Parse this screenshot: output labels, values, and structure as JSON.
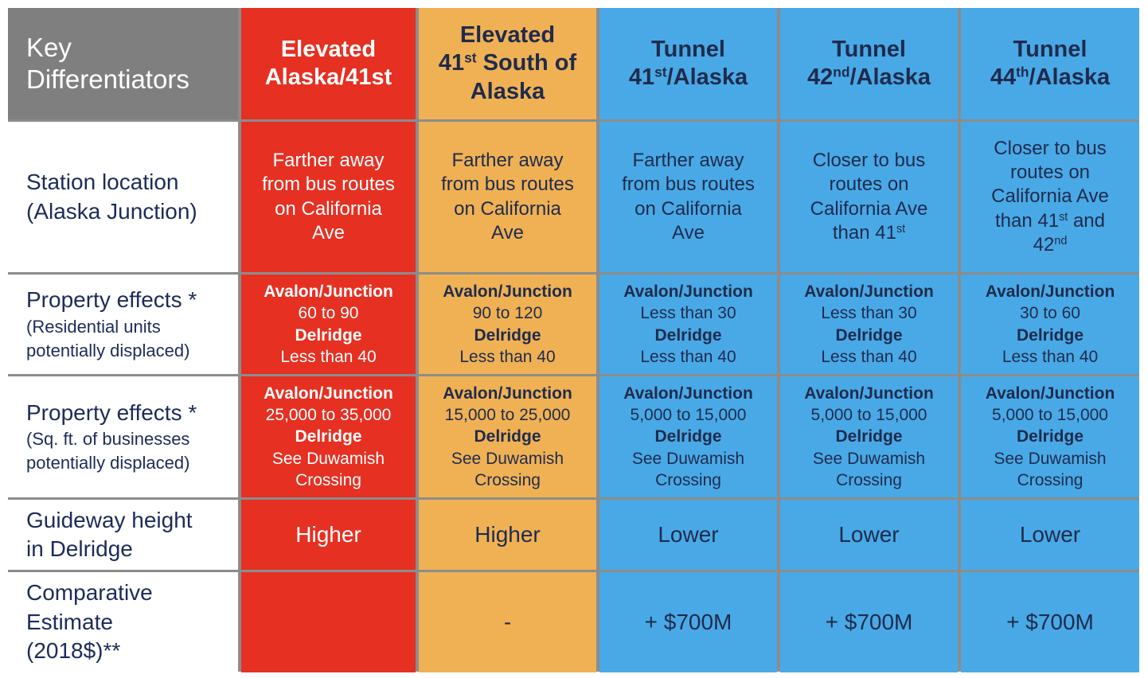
{
  "header": {
    "key_label": [
      "Key",
      "Differentiators"
    ],
    "options": [
      {
        "lines": [
          "Elevated",
          "Alaska/41st"
        ]
      },
      {
        "lines": [
          "Elevated",
          [
            "41",
            {
              "sup": "st"
            },
            " South of"
          ],
          "Alaska"
        ]
      },
      {
        "lines": [
          "Tunnel",
          [
            "41",
            {
              "sup": "st"
            },
            "/Alaska"
          ]
        ]
      },
      {
        "lines": [
          "Tunnel",
          [
            "42",
            {
              "sup": "nd"
            },
            "/Alaska"
          ]
        ]
      },
      {
        "lines": [
          "Tunnel",
          [
            "44",
            {
              "sup": "th"
            },
            "/Alaska"
          ]
        ]
      }
    ]
  },
  "colors": {
    "elevated_alaska_41st": "#e53022",
    "elevated_41st_south": "#f0b154",
    "tunnel": "#49a9e6",
    "header_key": "#7f7f7f",
    "text_navy": "#1f2b4d"
  },
  "rows": [
    {
      "label": {
        "title": [
          "Station location",
          "(Alaska Junction)"
        ]
      },
      "cells": [
        {
          "lines": [
            "Farther away",
            "from bus routes",
            "on California",
            "Ave"
          ]
        },
        {
          "lines": [
            "Farther away",
            "from bus routes",
            "on California",
            "Ave"
          ]
        },
        {
          "lines": [
            "Farther away",
            "from bus routes",
            "on California",
            "Ave"
          ]
        },
        {
          "lines": [
            "Closer to bus",
            "routes on",
            "California Ave",
            [
              "than 41",
              {
                "sup": "st"
              }
            ]
          ]
        },
        {
          "lines": [
            "Closer to bus",
            "routes on",
            "California Ave",
            [
              "than 41",
              {
                "sup": "st"
              },
              " and"
            ],
            [
              "42",
              {
                "sup": "nd"
              }
            ]
          ]
        }
      ]
    },
    {
      "label": {
        "title": [
          "Property effects *"
        ],
        "sub": [
          "(Residential units",
          "potentially  displaced)"
        ]
      },
      "cells": [
        {
          "lines": [
            {
              "b": "Avalon/Junction"
            },
            "60 to 90",
            {
              "b": "Delridge"
            },
            "Less than 40"
          ]
        },
        {
          "lines": [
            {
              "b": "Avalon/Junction"
            },
            "90 to 120",
            {
              "b": "Delridge"
            },
            "Less than 40"
          ]
        },
        {
          "lines": [
            {
              "b": "Avalon/Junction"
            },
            "Less than 30",
            {
              "b": "Delridge"
            },
            "Less than 40"
          ]
        },
        {
          "lines": [
            {
              "b": "Avalon/Junction"
            },
            "Less than 30",
            {
              "b": "Delridge"
            },
            "Less than 40"
          ]
        },
        {
          "lines": [
            {
              "b": "Avalon/Junction"
            },
            "30 to 60",
            {
              "b": "Delridge"
            },
            "Less than 40"
          ]
        }
      ]
    },
    {
      "label": {
        "title": [
          "Property effects *"
        ],
        "sub": [
          "(Sq. ft. of businesses",
          "potentially  displaced)"
        ]
      },
      "cells": [
        {
          "lines": [
            {
              "b": "Avalon/Junction"
            },
            "25,000 to 35,000",
            {
              "b": "Delridge"
            },
            "See Duwamish",
            "Crossing"
          ]
        },
        {
          "lines": [
            {
              "b": "Avalon/Junction"
            },
            "15,000 to 25,000",
            {
              "b": "Delridge"
            },
            "See Duwamish",
            "Crossing"
          ]
        },
        {
          "lines": [
            {
              "b": "Avalon/Junction"
            },
            "5,000 to 15,000",
            {
              "b": "Delridge"
            },
            "See Duwamish",
            "Crossing"
          ]
        },
        {
          "lines": [
            {
              "b": "Avalon/Junction"
            },
            "5,000 to 15,000",
            {
              "b": "Delridge"
            },
            "See Duwamish",
            "Crossing"
          ]
        },
        {
          "lines": [
            {
              "b": "Avalon/Junction"
            },
            "5,000 to 15,000",
            {
              "b": "Delridge"
            },
            "See Duwamish",
            "Crossing"
          ]
        }
      ]
    },
    {
      "label": {
        "title": [
          "Guideway height",
          "in Delridge"
        ]
      },
      "cells": [
        {
          "lines": [
            "Higher"
          ]
        },
        {
          "lines": [
            "Higher"
          ]
        },
        {
          "lines": [
            "Lower"
          ]
        },
        {
          "lines": [
            "Lower"
          ]
        },
        {
          "lines": [
            "Lower"
          ]
        }
      ]
    },
    {
      "label": {
        "title": [
          "Comparative",
          "Estimate",
          "(2018$)**"
        ]
      },
      "cells": [
        {
          "lines": []
        },
        {
          "lines": [
            "-"
          ]
        },
        {
          "lines": [
            "+ $700M"
          ]
        },
        {
          "lines": [
            "+ $700M"
          ]
        },
        {
          "lines": [
            "+ $700M"
          ]
        }
      ]
    }
  ]
}
